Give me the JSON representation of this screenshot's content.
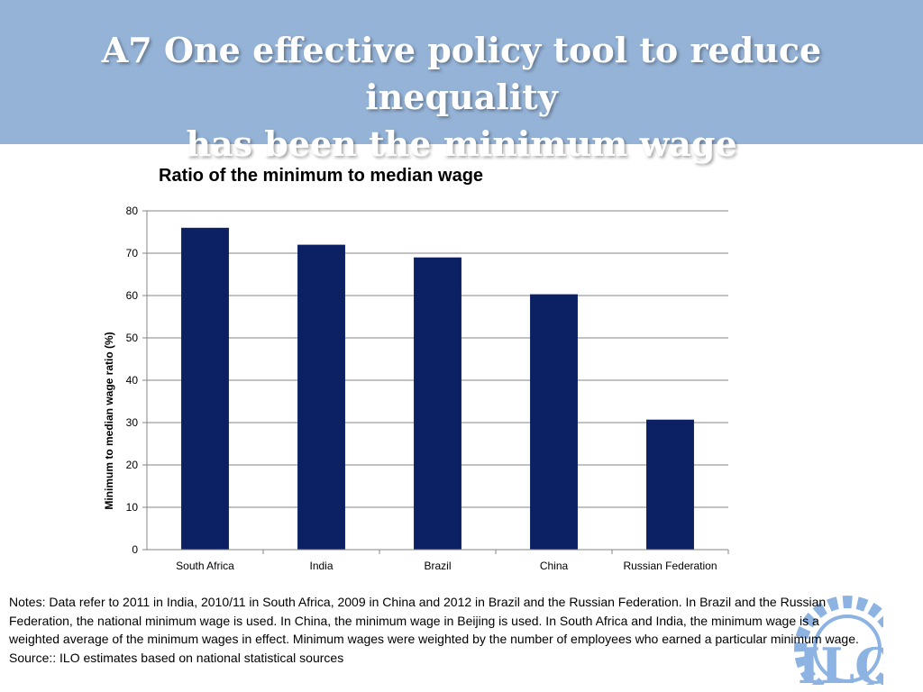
{
  "header": {
    "title_line1": "A7  One effective policy tool to reduce inequality",
    "title_line2": "has been the minimum wage"
  },
  "chart_data": {
    "type": "bar",
    "title": "Ratio of the minimum to median wage",
    "xlabel": "",
    "ylabel": "Minimum to median wage ratio (%)",
    "categories": [
      "South Africa",
      "India",
      "Brazil",
      "China",
      "Russian Federation"
    ],
    "values": [
      76,
      72,
      69,
      60.3,
      30.7
    ],
    "ylim": [
      0,
      80
    ],
    "yticks": [
      0,
      10,
      20,
      30,
      40,
      50,
      60,
      70,
      80
    ],
    "grid": true,
    "legend": "none",
    "bar_color": "#0b2163"
  },
  "notes": {
    "text": "Notes: Data refer to 2011 in India, 2010/11 in South Africa, 2009 in China and 2012 in Brazil and the Russian Federation.  In Brazil and the Russian Federation, the national minimum wage is used.  In China, the minimum wage in Beijing is used. In South Africa and India, the minimum wage is a weighted average of the minimum wages in effect. Minimum wages were weighted by the number of employees who earned a particular minimum wage.",
    "source": "Source:: ILO estimates based on national statistical sources"
  },
  "colors": {
    "header_bg": "#95b3d7",
    "logo": "#8db3e2"
  },
  "logo": {
    "text": "ILO",
    "icon": "ilo-logo-icon"
  }
}
